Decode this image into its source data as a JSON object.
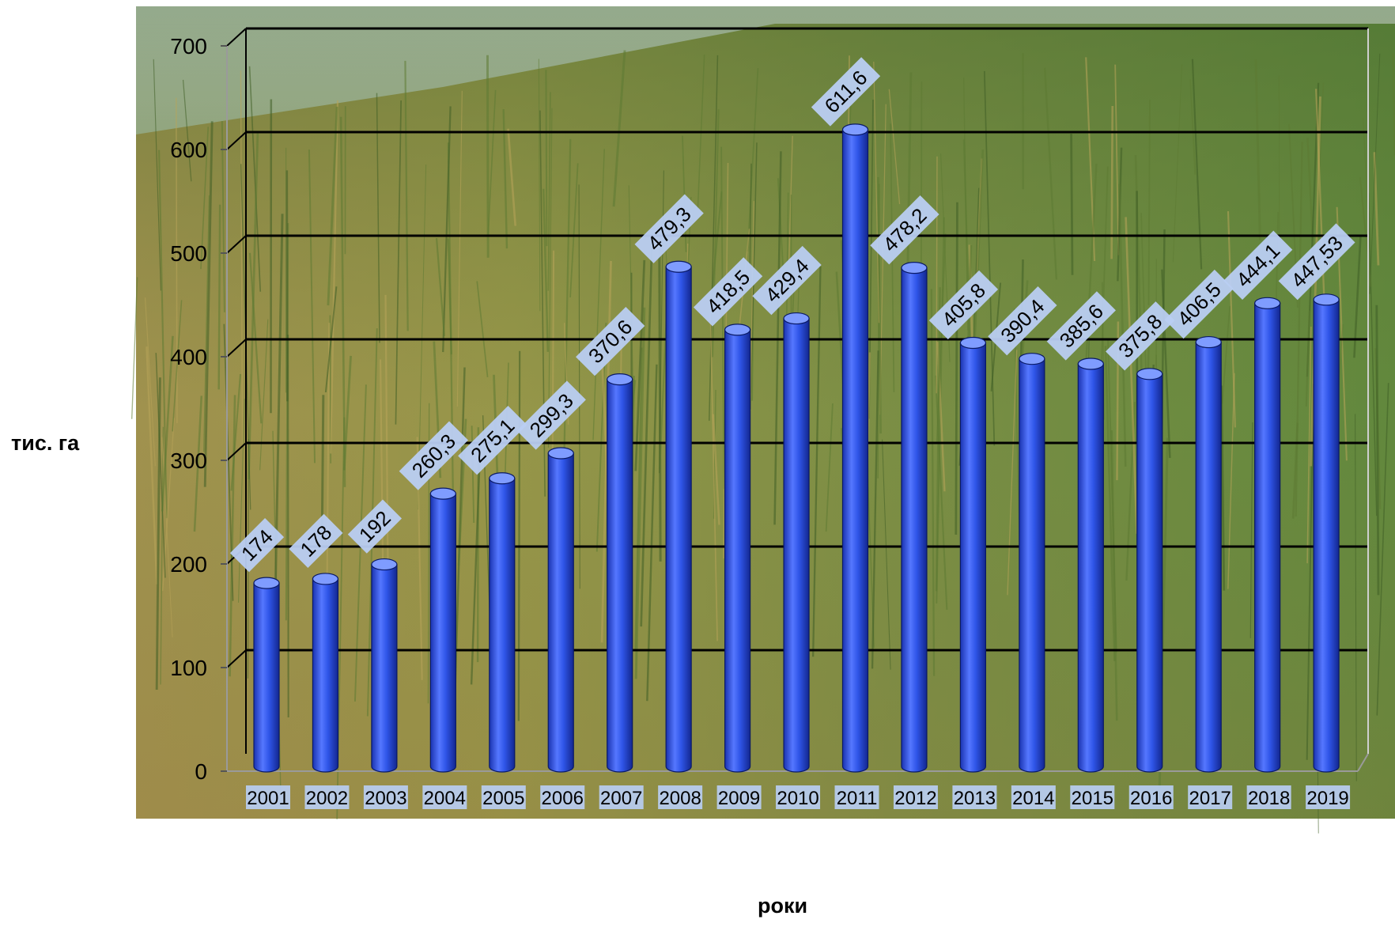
{
  "chart_data": {
    "type": "bar",
    "categories": [
      "2001",
      "2002",
      "2003",
      "2004",
      "2005",
      "2006",
      "2007",
      "2008",
      "2009",
      "2010",
      "2011",
      "2012",
      "2013",
      "2014",
      "2015",
      "2016",
      "2017",
      "2018",
      "2019"
    ],
    "values": [
      174,
      178,
      192,
      260.3,
      275.1,
      299.3,
      370.6,
      479.3,
      418.5,
      429.4,
      611.6,
      478.2,
      405.8,
      390.4,
      385.6,
      375.8,
      406.5,
      444.1,
      447.53
    ],
    "value_labels": [
      "174",
      "178",
      "192",
      "260,3",
      "275,1",
      "299,3",
      "370,6",
      "479,3",
      "418,5",
      "429,4",
      "611,6",
      "478,2",
      "405,8",
      "390,4",
      "385,6",
      "375,8",
      "406,5",
      "444,1",
      "447,53"
    ],
    "ylabel": "тис. га",
    "xlabel": "роки",
    "ylim": [
      0,
      700
    ],
    "yticks": [
      "0",
      "100",
      "200",
      "300",
      "400",
      "500",
      "600",
      "700"
    ],
    "grid": true,
    "background": "wheat-field-photo",
    "colors": {
      "bar": "#2f55e8",
      "bar_dark": "#1a33b0",
      "bar_light": "#7f9cff",
      "label_bg": "#b9cdf2"
    }
  }
}
